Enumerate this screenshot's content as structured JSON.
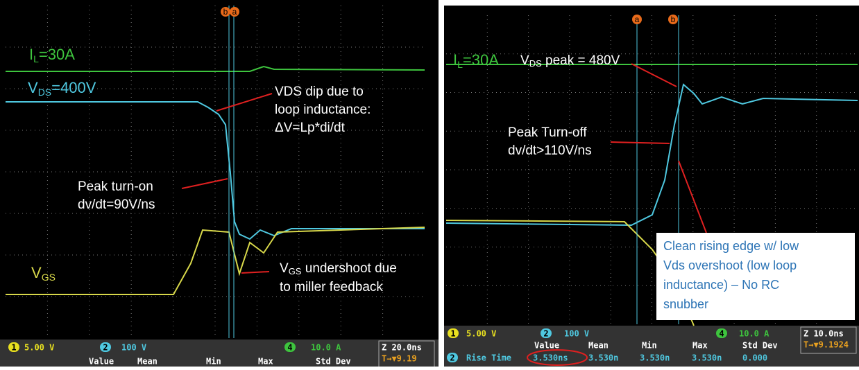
{
  "left": {
    "cursors": [
      "b",
      "a"
    ],
    "il_label": [
      "I",
      "L",
      "=30A"
    ],
    "vds_label": [
      "V",
      "DS",
      "=400V"
    ],
    "vgs_label": [
      "V",
      "GS"
    ],
    "dip_note": [
      "VDS dip due to",
      "loop inductance:",
      "ΔV=Lp*di/dt"
    ],
    "turn_on_note": [
      "Peak turn-on",
      "dv/dt=90V/ns"
    ],
    "undershoot_note": [
      "V",
      "GS",
      " undershoot due",
      "to miller feedback"
    ],
    "channels": [
      [
        "1",
        "5.00 V"
      ],
      [
        "2",
        "100 V"
      ],
      [
        "4",
        "10.0 A"
      ]
    ],
    "timebase": "Z 20.0ns",
    "trigger": "T→▼9.19",
    "meas_headers": [
      "Value",
      "Mean",
      "Min",
      "Max",
      "Std Dev"
    ]
  },
  "right": {
    "cursors": [
      "a",
      "b"
    ],
    "il_label": [
      "I",
      "L",
      "=30A"
    ],
    "peak_label": [
      "V",
      "DS",
      " peak = 480V"
    ],
    "turn_off_note": [
      "Peak Turn-off",
      "dv/dt>110V/ns"
    ],
    "box_note": [
      "Clean rising edge w/ low",
      "Vds overshoot (low loop",
      "inductance) – No RC",
      "snubber"
    ],
    "channels": [
      [
        "1",
        "5.00 V"
      ],
      [
        "2",
        "100 V"
      ],
      [
        "4",
        "10.0 A"
      ]
    ],
    "timebase": "Z 10.0ns",
    "trigger": "T→▼9.1924",
    "meas_headers": [
      "Value",
      "Mean",
      "Min",
      "Max",
      "Std Dev"
    ],
    "meas_row": [
      "2",
      "Rise Time",
      "3.530ns",
      "3.530n",
      "3.530n",
      "3.530n",
      "0.000"
    ]
  }
}
